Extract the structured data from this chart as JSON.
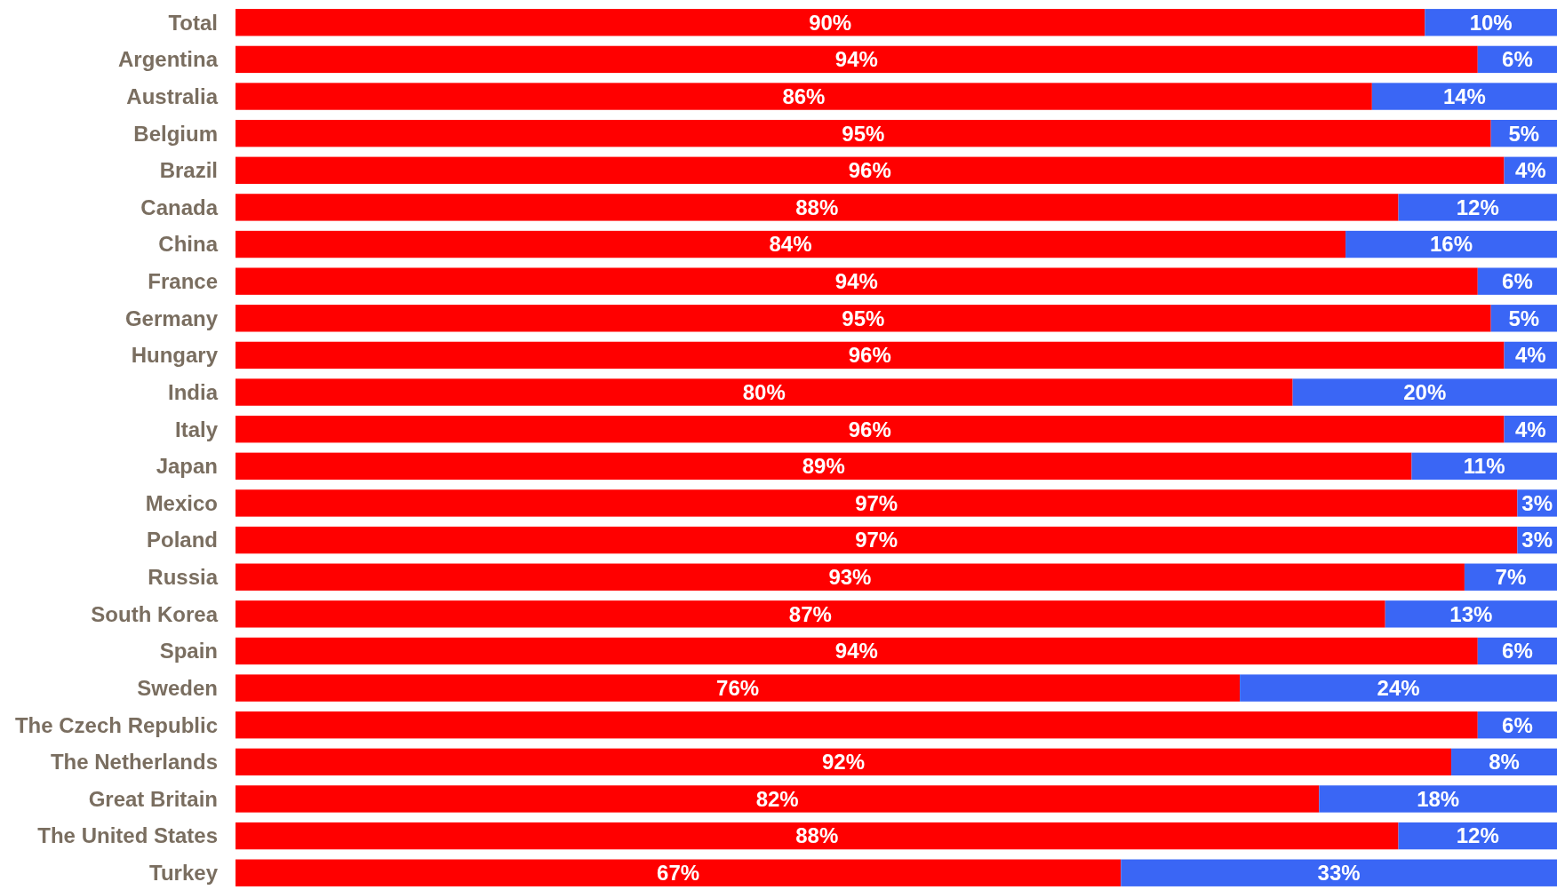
{
  "chart_data": {
    "type": "bar",
    "orientation": "horizontal",
    "stacked": true,
    "categories": [
      "Total",
      "Argentina",
      "Australia",
      "Belgium",
      "Brazil",
      "Canada",
      "China",
      "France",
      "Germany",
      "Hungary",
      "India",
      "Italy",
      "Japan",
      "Mexico",
      "Poland",
      "Russia",
      "South Korea",
      "Spain",
      "Sweden",
      "The Czech Republic",
      "The Netherlands",
      "Great Britain",
      "The United States",
      "Turkey"
    ],
    "series": [
      {
        "color": "#ff0000",
        "values": [
          90,
          94,
          86,
          95,
          96,
          88,
          84,
          94,
          95,
          96,
          80,
          96,
          89,
          97,
          97,
          93,
          87,
          94,
          76,
          94,
          92,
          82,
          88,
          67
        ],
        "value_labels": [
          "90%",
          "94%",
          "86%",
          "95%",
          "96%",
          "88%",
          "84%",
          "94%",
          "95%",
          "96%",
          "80%",
          "96%",
          "89%",
          "97%",
          "97%",
          "93%",
          "87%",
          "94%",
          "76%",
          null,
          "92%",
          "82%",
          "88%",
          "67%"
        ]
      },
      {
        "color": "#3a66f5",
        "values": [
          10,
          6,
          14,
          5,
          4,
          12,
          16,
          6,
          5,
          4,
          20,
          4,
          11,
          3,
          3,
          7,
          13,
          6,
          24,
          6,
          8,
          18,
          12,
          33
        ],
        "value_labels": [
          "10%",
          "6%",
          "14%",
          "5%",
          "4%",
          "12%",
          "16%",
          "6%",
          "5%",
          "4%",
          "20%",
          "4%",
          "11%",
          "3%",
          "3%",
          "7%",
          "13%",
          "6%",
          "24%",
          "6%",
          "8%",
          "18%",
          "12%",
          "33%"
        ]
      }
    ]
  }
}
